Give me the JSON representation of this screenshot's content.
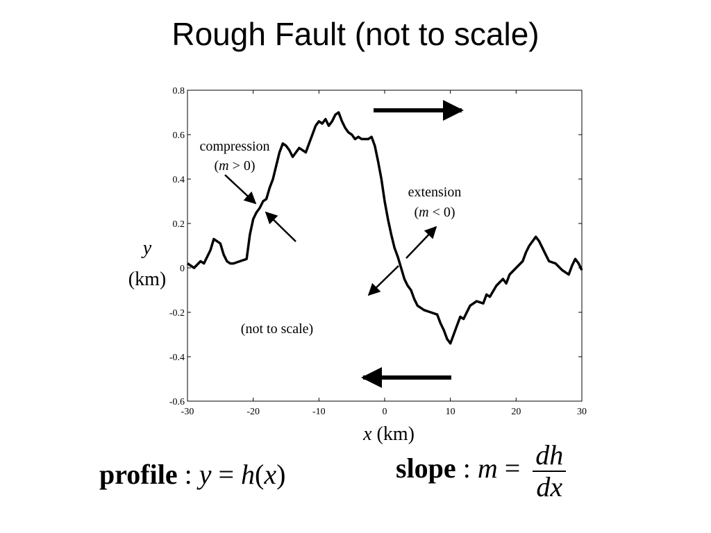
{
  "title": "Rough Fault (not to scale)",
  "chart_data": {
    "type": "line",
    "xlabel_var": "x",
    "xlabel_unit": "(km)",
    "ylabel_var": "y",
    "ylabel_unit": "(km)",
    "xlim": [
      -30,
      30
    ],
    "ylim": [
      -0.6,
      0.8
    ],
    "xticks": [
      -30,
      -20,
      -10,
      0,
      10,
      20,
      30
    ],
    "yticks": [
      -0.6,
      -0.4,
      -0.2,
      0,
      0.2,
      0.4,
      0.6,
      0.8
    ],
    "series": [
      {
        "x": [
          -30,
          -29,
          -28,
          -27.5,
          -26.5,
          -26,
          -25,
          -24.5,
          -24,
          -23.5,
          -23,
          -22,
          -21,
          -20.5,
          -20,
          -19.5,
          -19,
          -18.5,
          -18,
          -17.5,
          -17,
          -16.5,
          -16,
          -15.5,
          -15,
          -14.5,
          -14,
          -13.5,
          -13,
          -12,
          -11.5,
          -11,
          -10.5,
          -10,
          -9.5,
          -9,
          -8.5,
          -8,
          -7.5,
          -7,
          -6.5,
          -6,
          -5.5,
          -5,
          -4.5,
          -4,
          -3.5,
          -3,
          -2.5,
          -2,
          -1.5,
          -1,
          -0.5,
          0,
          0.5,
          1,
          1.5,
          2,
          2.5,
          3,
          3.5,
          4,
          4.5,
          5,
          6,
          7,
          8,
          8.5,
          9,
          9.5,
          10,
          10.5,
          11,
          11.5,
          12,
          12.5,
          13,
          14,
          15,
          15.5,
          16,
          17,
          18,
          18.5,
          19,
          20,
          21,
          21.5,
          22,
          22.5,
          23,
          23.5,
          24,
          24.5,
          25,
          26,
          27,
          28,
          28.5,
          29,
          29.5,
          30
        ],
        "y": [
          0.02,
          0.0,
          0.03,
          0.02,
          0.08,
          0.13,
          0.11,
          0.06,
          0.03,
          0.02,
          0.02,
          0.03,
          0.04,
          0.15,
          0.22,
          0.25,
          0.27,
          0.3,
          0.31,
          0.36,
          0.4,
          0.46,
          0.52,
          0.56,
          0.55,
          0.53,
          0.5,
          0.52,
          0.54,
          0.52,
          0.56,
          0.6,
          0.64,
          0.66,
          0.65,
          0.67,
          0.64,
          0.66,
          0.69,
          0.7,
          0.66,
          0.63,
          0.61,
          0.6,
          0.58,
          0.59,
          0.58,
          0.58,
          0.58,
          0.59,
          0.55,
          0.48,
          0.4,
          0.3,
          0.22,
          0.15,
          0.09,
          0.05,
          0.0,
          -0.05,
          -0.08,
          -0.1,
          -0.14,
          -0.17,
          -0.19,
          -0.2,
          -0.21,
          -0.25,
          -0.28,
          -0.32,
          -0.34,
          -0.3,
          -0.26,
          -0.22,
          -0.23,
          -0.2,
          -0.17,
          -0.15,
          -0.16,
          -0.12,
          -0.13,
          -0.08,
          -0.05,
          -0.07,
          -0.03,
          0.0,
          0.03,
          0.07,
          0.1,
          0.12,
          0.14,
          0.12,
          0.09,
          0.06,
          0.03,
          0.02,
          -0.01,
          -0.03,
          0.01,
          0.04,
          0.02,
          -0.01
        ]
      }
    ],
    "annotations": {
      "compression_label": "compression",
      "compression_cond_var": "m",
      "compression_cond_rest": " > 0)",
      "extension_label": "extension",
      "extension_cond_var": "m",
      "extension_cond_rest": " < 0)",
      "scale_note": "(not to scale)"
    },
    "grid": false
  },
  "formulas": {
    "profile_word": "profile",
    "profile_colon": " : ",
    "profile_y": "y",
    "profile_eq": " = ",
    "profile_h": "h",
    "profile_open": "(",
    "profile_x": "x",
    "profile_close": ")",
    "slope_word": "slope",
    "slope_colon": " : ",
    "slope_m": "m",
    "slope_eq": " = ",
    "slope_num": "dh",
    "slope_den": "dx"
  }
}
